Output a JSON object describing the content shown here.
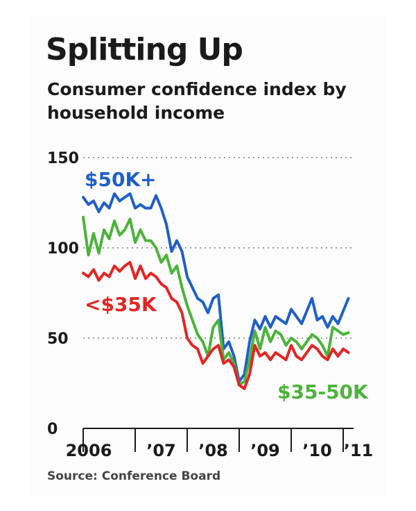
{
  "chart_data": {
    "type": "line",
    "title": "Splitting Up",
    "subtitle": "Consumer confidence index by household income",
    "source": "Source: Conference Board",
    "ylim": [
      0,
      150
    ],
    "yticks": [
      0,
      50,
      100,
      150
    ],
    "xlim": [
      2006.0,
      2011.2
    ],
    "xticks": [
      {
        "label": "2006",
        "year": 2006.0
      },
      {
        "label": "’07",
        "year": 2007.0
      },
      {
        "label": "’08",
        "year": 2008.0
      },
      {
        "label": "’09",
        "year": 2009.0
      },
      {
        "label": "’10",
        "year": 2010.0
      },
      {
        "label": "’11",
        "year": 2011.0
      }
    ],
    "grid": "dotted horizontal",
    "series": [
      {
        "name": "$50K+",
        "color": "#1f5fc8",
        "x": [
          2006.0,
          2006.1,
          2006.2,
          2006.3,
          2006.4,
          2006.5,
          2006.6,
          2006.7,
          2006.8,
          2006.9,
          2007.0,
          2007.1,
          2007.2,
          2007.3,
          2007.4,
          2007.5,
          2007.6,
          2007.7,
          2007.8,
          2007.9,
          2008.0,
          2008.1,
          2008.2,
          2008.3,
          2008.4,
          2008.5,
          2008.6,
          2008.7,
          2008.8,
          2008.9,
          2009.0,
          2009.1,
          2009.2,
          2009.3,
          2009.4,
          2009.5,
          2009.6,
          2009.7,
          2009.8,
          2009.9,
          2010.0,
          2010.1,
          2010.2,
          2010.3,
          2010.4,
          2010.5,
          2010.6,
          2010.7,
          2010.8,
          2010.9,
          2011.0,
          2011.1
        ],
        "values": [
          128,
          124,
          126,
          120,
          125,
          122,
          130,
          126,
          128,
          130,
          122,
          124,
          122,
          122,
          129,
          122,
          113,
          98,
          104,
          98,
          84,
          78,
          72,
          70,
          64,
          72,
          74,
          44,
          48,
          40,
          26,
          30,
          48,
          60,
          55,
          62,
          56,
          62,
          60,
          58,
          66,
          62,
          58,
          65,
          72,
          60,
          62,
          56,
          62,
          58,
          65,
          72
        ]
      },
      {
        "name": "$35-50K",
        "color": "#4bb43a",
        "x": [
          2006.0,
          2006.1,
          2006.2,
          2006.3,
          2006.4,
          2006.5,
          2006.6,
          2006.7,
          2006.8,
          2006.9,
          2007.0,
          2007.1,
          2007.2,
          2007.3,
          2007.4,
          2007.5,
          2007.6,
          2007.7,
          2007.8,
          2007.9,
          2008.0,
          2008.1,
          2008.2,
          2008.3,
          2008.4,
          2008.5,
          2008.6,
          2008.7,
          2008.8,
          2008.9,
          2009.0,
          2009.1,
          2009.2,
          2009.3,
          2009.4,
          2009.5,
          2009.6,
          2009.7,
          2009.8,
          2009.9,
          2010.0,
          2010.1,
          2010.2,
          2010.3,
          2010.4,
          2010.5,
          2010.6,
          2010.7,
          2010.8,
          2010.9,
          2011.0,
          2011.1
        ],
        "values": [
          117,
          96,
          108,
          97,
          110,
          105,
          115,
          107,
          110,
          116,
          103,
          110,
          104,
          104,
          100,
          92,
          96,
          86,
          90,
          78,
          68,
          60,
          52,
          48,
          40,
          56,
          60,
          38,
          42,
          36,
          24,
          26,
          38,
          54,
          44,
          56,
          48,
          54,
          52,
          46,
          50,
          48,
          44,
          48,
          52,
          50,
          46,
          40,
          56,
          54,
          52,
          53
        ]
      },
      {
        "name": "<$35K",
        "color": "#e32424",
        "x": [
          2006.0,
          2006.1,
          2006.2,
          2006.3,
          2006.4,
          2006.5,
          2006.6,
          2006.7,
          2006.8,
          2006.9,
          2007.0,
          2007.1,
          2007.2,
          2007.3,
          2007.4,
          2007.5,
          2007.6,
          2007.7,
          2007.8,
          2007.9,
          2008.0,
          2008.1,
          2008.2,
          2008.3,
          2008.4,
          2008.5,
          2008.6,
          2008.7,
          2008.8,
          2008.9,
          2009.0,
          2009.1,
          2009.2,
          2009.3,
          2009.4,
          2009.5,
          2009.6,
          2009.7,
          2009.8,
          2009.9,
          2010.0,
          2010.1,
          2010.2,
          2010.3,
          2010.4,
          2010.5,
          2010.6,
          2010.7,
          2010.8,
          2010.9,
          2011.0,
          2011.1
        ],
        "values": [
          86,
          84,
          88,
          82,
          86,
          84,
          90,
          87,
          90,
          92,
          83,
          90,
          83,
          86,
          84,
          80,
          78,
          72,
          70,
          64,
          50,
          46,
          44,
          36,
          40,
          44,
          46,
          36,
          38,
          34,
          24,
          22,
          30,
          46,
          40,
          42,
          38,
          42,
          40,
          38,
          46,
          40,
          38,
          42,
          46,
          44,
          40,
          38,
          44,
          40,
          44,
          42
        ]
      }
    ],
    "annotations": [
      {
        "text": "$50K+",
        "series": "$50K+",
        "color": "#1f5fc8"
      },
      {
        "text": "<$35K",
        "series": "<$35K",
        "color": "#e32424"
      },
      {
        "text": "$35-50K",
        "series": "$35-50K",
        "color": "#4bb43a"
      }
    ]
  }
}
